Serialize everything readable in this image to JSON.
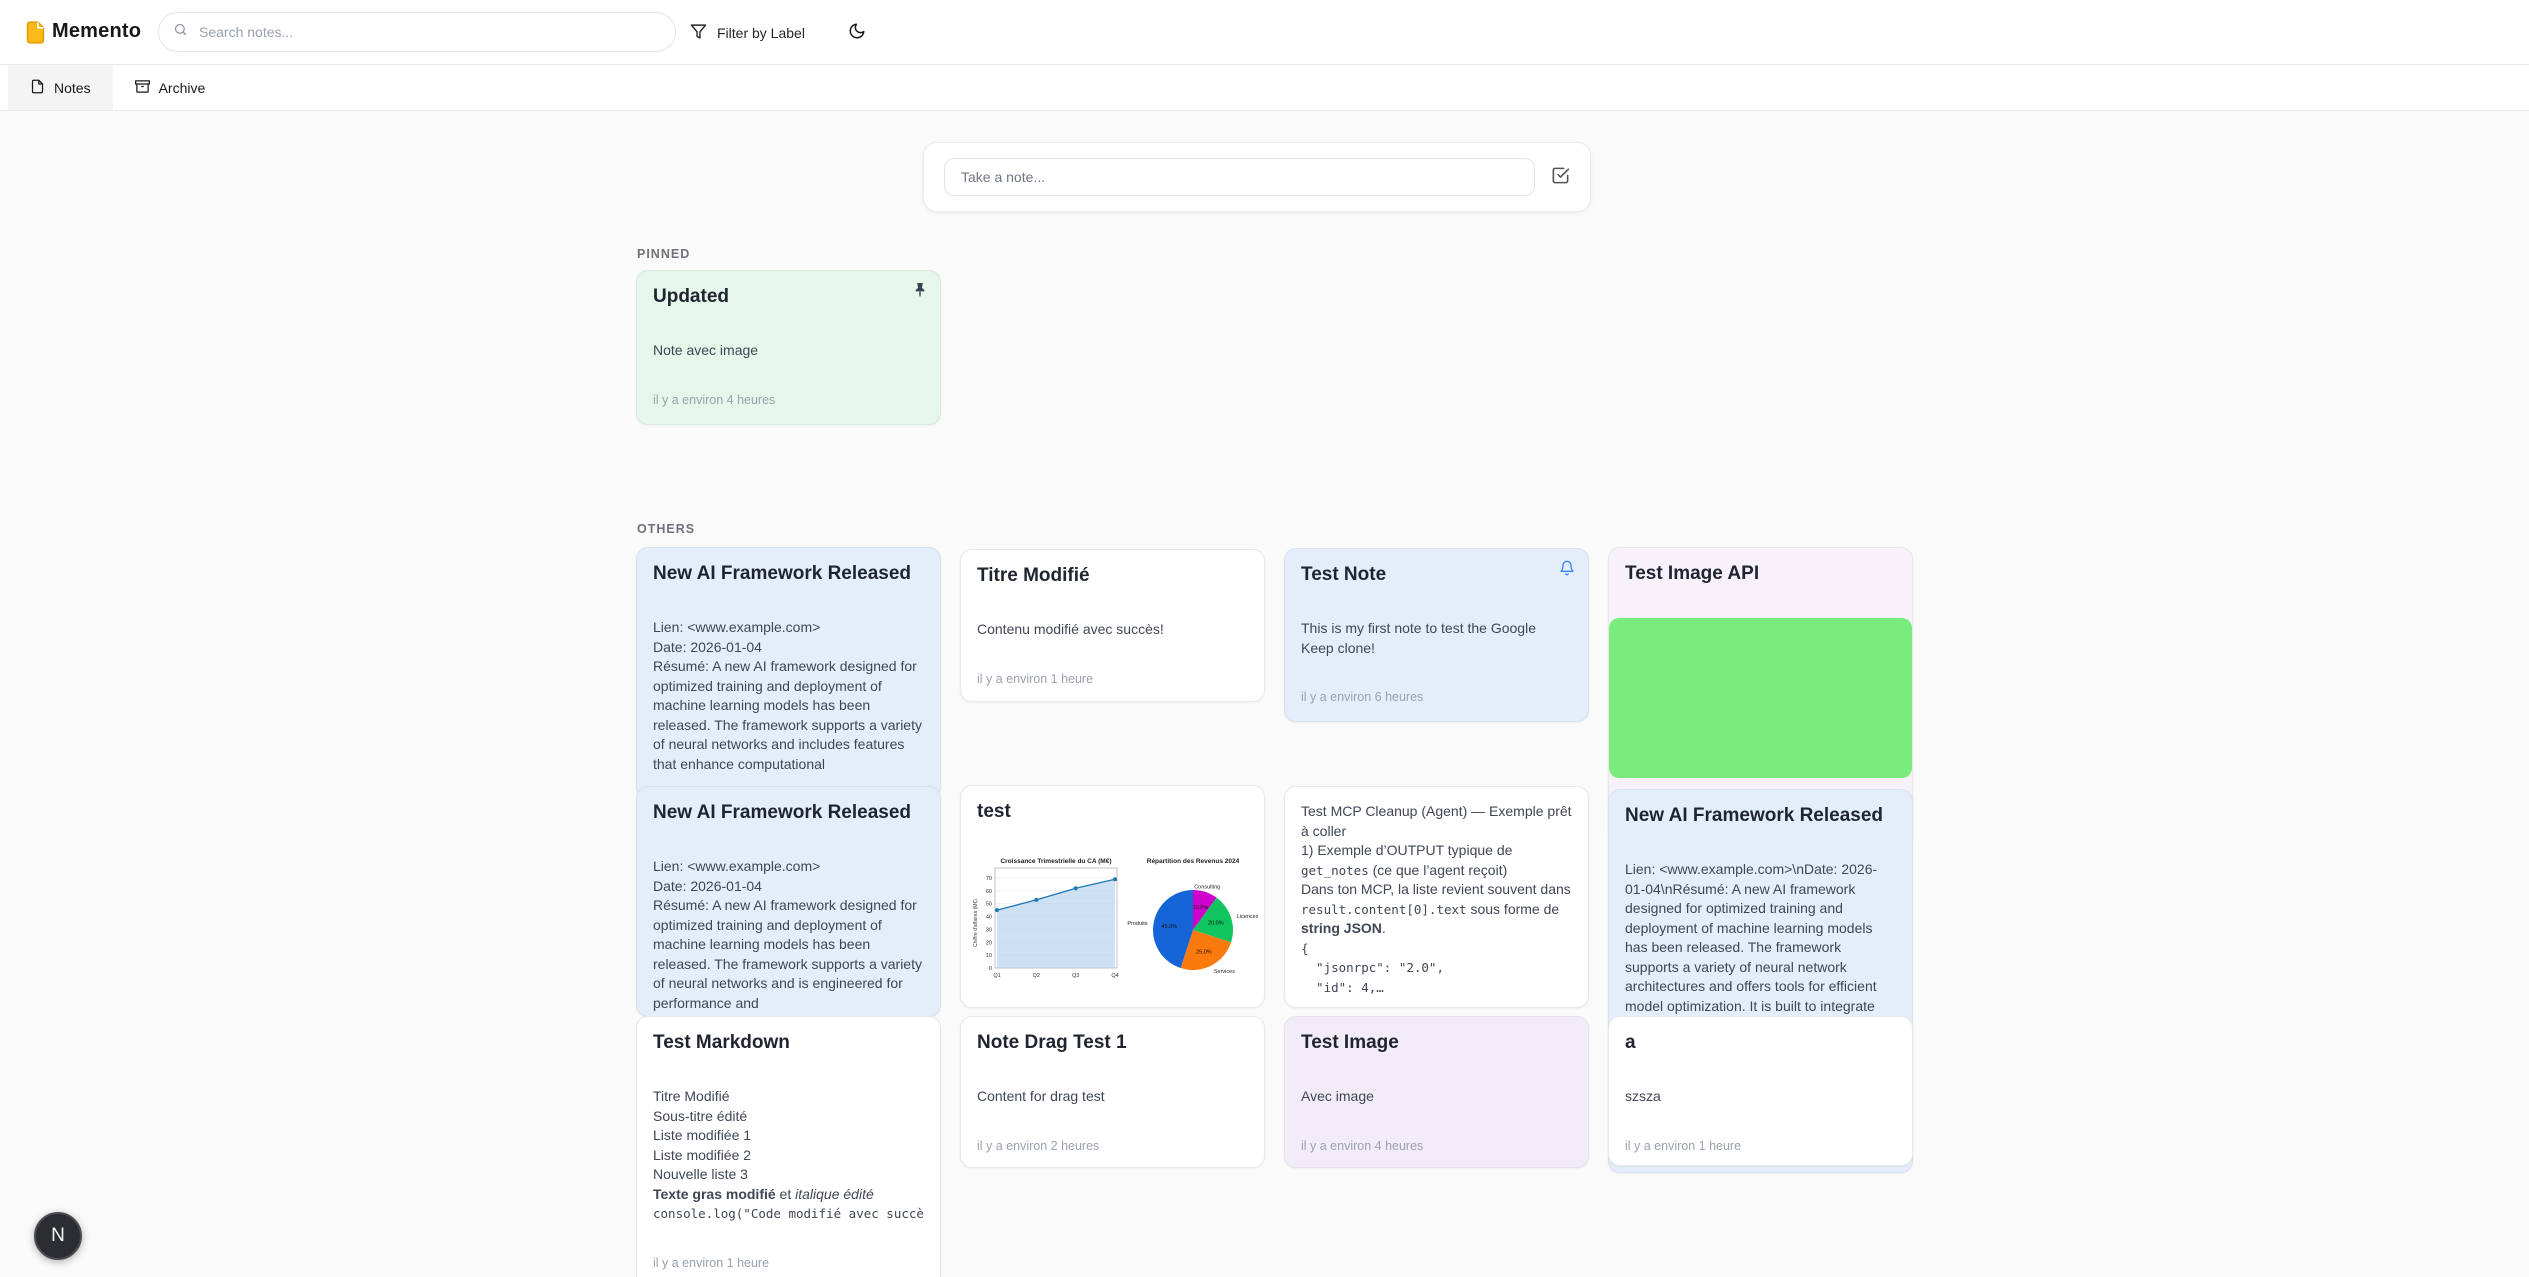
{
  "app": {
    "name": "Memento"
  },
  "header": {
    "search_placeholder": "Search notes...",
    "filter_button": "Filter by Label"
  },
  "tabs": {
    "notes": "Notes",
    "archive": "Archive"
  },
  "composer": {
    "placeholder": "Take a note..."
  },
  "sections": {
    "pinned": "PINNED",
    "others": "OTHERS"
  },
  "pinned_notes": [
    {
      "title": "Updated",
      "content": "Note avec image",
      "timestamp": "il y a environ 4 heures",
      "color": "green",
      "pinned": true
    }
  ],
  "notes": [
    {
      "title": "New AI Framework Released",
      "color": "blue",
      "content": "Lien: <www.example.com>\nDate: 2026-01-04\nRésumé: A new AI framework designed for optimized training and deployment of machine learning models has been released. The framework supports a variety of neural networks and includes features that enhance computational"
    },
    {
      "title": "Titre Modifié",
      "color": "white",
      "content": "Contenu modifié avec succès!",
      "timestamp": "il y a environ 1 heure"
    },
    {
      "title": "Test Note",
      "color": "blue",
      "reminder": true,
      "content": "This is my first note to test the Google Keep clone!",
      "timestamp": "il y a environ 6 heures"
    },
    {
      "title": "Test Image API",
      "color": "lavender",
      "has_image": true
    },
    {
      "title": "New AI Framework Released",
      "color": "blue",
      "content": "Lien: <www.example.com>\nDate: 2026-01-04\nRésumé: A new AI framework designed for optimized training and deployment of machine learning models has been released. The framework supports a variety of neural networks and is engineered for performance and"
    },
    {
      "title": "test",
      "color": "white",
      "has_charts": true
    },
    {
      "title": null,
      "color": "white",
      "rich": [
        [
          "t",
          "Test MCP Cleanup (Agent) — Exemple prêt à coller\n1) Exemple d’OUTPUT typique de "
        ],
        [
          "m",
          "get_notes"
        ],
        [
          "t",
          " (ce que l’agent reçoit)\nDans ton MCP, la liste revient souvent dans "
        ],
        [
          "m",
          "result.content[0].text"
        ],
        [
          "t",
          " sous forme de "
        ],
        [
          "b",
          "string JSON"
        ],
        [
          "t",
          ".\n"
        ],
        [
          "m",
          "{\n  \"jsonrpc\": \"2.0\",\n  \"id\": 4,…"
        ]
      ]
    },
    {
      "title": "New AI Framework Released",
      "color": "blue",
      "content": "Lien: <www.example.com>\\nDate: 2026-01-04\\nRésumé: A new AI framework designed for optimized training and deployment of machine learning models has been released. The framework supports a variety of neural network architectures and offers tools for efficient model optimization. It is built to integrate"
    },
    {
      "title": "Test Markdown",
      "color": "white",
      "timestamp": "il y a environ 1 heure",
      "rich": [
        [
          "t",
          "Titre Modifié\nSous-titre édité\nListe modifiée 1\nListe modifiée 2\nNouvelle liste 3\n"
        ],
        [
          "b",
          "Texte gras modifié"
        ],
        [
          "t",
          " et "
        ],
        [
          "i",
          "italique édité"
        ],
        [
          "t",
          "\n"
        ],
        [
          "m",
          "console.log(\"Code modifié avec succè"
        ]
      ]
    },
    {
      "title": "Note Drag Test 1",
      "color": "white",
      "content": "Content for drag test",
      "timestamp": "il y a environ 2 heures"
    },
    {
      "title": "Test Image",
      "color": "lavender2",
      "content": "Avec image",
      "timestamp": "il y a environ 4 heures"
    },
    {
      "title": "a",
      "color": "white",
      "content": "szsza",
      "timestamp": "il y a environ 1 heure"
    }
  ],
  "avatar": {
    "initial": "N"
  },
  "colors": {
    "note_white": "#ffffff",
    "note_blue": "#e4eefb",
    "note_green": "#e4f7ea",
    "note_lavender": "#f7f2fa",
    "note_lavender2": "#f2ecf8",
    "image_green": "#79ec7d",
    "accent_bell": "#3b82f6",
    "pin_color": "#3b4453",
    "logo_amber": "#f5b50d",
    "avatar_bg": "#2b2d31"
  },
  "chart_data": [
    {
      "type": "area",
      "title": "Croissance Trimestrielle du CA (M€)",
      "categories": [
        "Q1",
        "Q2",
        "Q3",
        "Q4"
      ],
      "values": [
        45,
        53,
        62,
        69
      ],
      "xlabel": "",
      "ylabel": "Chiffre d'affaires (M€)",
      "ylim": [
        0,
        70
      ],
      "yticks": [
        0,
        10,
        20,
        30,
        40,
        50,
        60,
        70
      ],
      "grid": true,
      "line_color": "#1f77b4",
      "fill_color": "#aecdea"
    },
    {
      "type": "pie",
      "title": "Répartition des Revenus 2024",
      "slices": [
        {
          "label": "Consulting",
          "value": 10.0,
          "color": "#cf00ce"
        },
        {
          "label": "Licences",
          "value": 20.0,
          "color": "#10c45f"
        },
        {
          "label": "Services",
          "value": 25.0,
          "color": "#fb7a0e"
        },
        {
          "label": "Produits",
          "value": 45.0,
          "color": "#1565d8"
        }
      ],
      "start_angle": "top",
      "direction": "clockwise",
      "value_label_format": "percent-1-decimal"
    }
  ]
}
